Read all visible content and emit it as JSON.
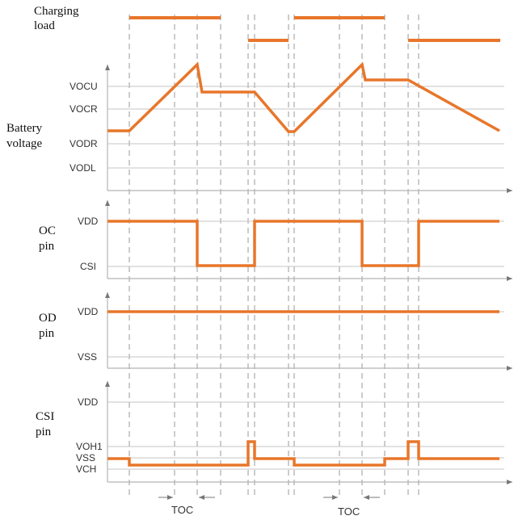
{
  "panels": {
    "charging_load": {
      "label_line1": "Charging",
      "label_line2": "load"
    },
    "battery_voltage": {
      "label_line1": "Battery",
      "label_line2": "voltage",
      "levels": [
        "VOCU",
        "VOCR",
        "VODR",
        "VODL"
      ]
    },
    "oc_pin": {
      "label_line1": "OC",
      "label_line2": "pin",
      "levels": [
        "VDD",
        "CSI"
      ]
    },
    "od_pin": {
      "label_line1": "OD",
      "label_line2": "pin",
      "levels": [
        "VDD",
        "VSS"
      ]
    },
    "csi_pin": {
      "label_line1": "CSI",
      "label_line2": "pin",
      "levels": [
        "VDD",
        "VOH1",
        "VSS",
        "VCH"
      ]
    }
  },
  "timing": {
    "toc_label_1": "TOC",
    "toc_label_2": "TOC"
  },
  "colors": {
    "waveform": "#e8762a",
    "axis": "#b5b5b5",
    "gridline": "#c4c4c4"
  }
}
